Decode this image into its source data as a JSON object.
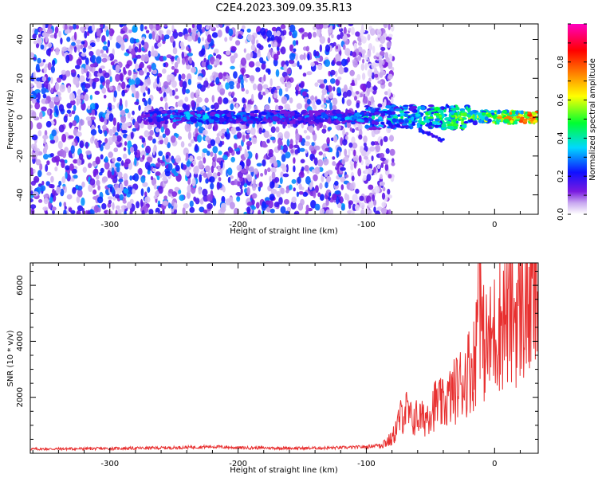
{
  "figure_title": "C2E4.2023.309.09.35.R13",
  "chart_data": [
    {
      "type": "heatmap",
      "title": "C2E4.2023.309.09.35.R13",
      "xlabel": "Height of straight line (km)",
      "ylabel": "Frequency (Hz)",
      "xlim": [
        -362,
        34
      ],
      "ylim": [
        -50,
        48
      ],
      "xticks": [
        -300,
        -200,
        -100,
        0
      ],
      "yticks": [
        -40,
        -20,
        0,
        20,
        40
      ],
      "colorbar": {
        "label": "Normalized spectral amplitude",
        "range": [
          0,
          1
        ],
        "ticks": [
          "0.0",
          "0.2",
          "0.4",
          "0.6",
          "0.8"
        ],
        "colormap": "rainbow (white → violet → blue → cyan → green → yellow → orange → red → magenta)"
      },
      "features": {
        "noise_region_x": [
          -362,
          -85
        ],
        "noise_amplitude_typical": 0.15,
        "signal_band_center_hz": 0,
        "signal_band_x": [
          -272,
          34
        ],
        "signal_amplitude_profile": [
          {
            "x": -270,
            "amp": 0.3
          },
          {
            "x": -240,
            "amp": 0.4
          },
          {
            "x": -200,
            "amp": 0.35
          },
          {
            "x": -140,
            "amp": 0.3
          },
          {
            "x": -100,
            "amp": 0.4
          },
          {
            "x": -80,
            "amp": 0.45
          },
          {
            "x": -60,
            "amp": 0.5
          },
          {
            "x": -40,
            "amp": 0.55
          },
          {
            "x": -20,
            "amp": 0.6
          },
          {
            "x": 0,
            "amp": 0.7
          },
          {
            "x": 20,
            "amp": 0.85
          },
          {
            "x": 34,
            "amp": 0.9
          }
        ],
        "secondary_branch": {
          "x": [
            -60,
            -40
          ],
          "freq_hz": [
            -6,
            -12
          ]
        }
      }
    },
    {
      "type": "line",
      "xlabel": "Height of straight line (km)",
      "ylabel": "SNR (10 * v/v)",
      "xlim": [
        -362,
        34
      ],
      "ylim": [
        0,
        6800
      ],
      "xticks": [
        -300,
        -200,
        -100,
        0
      ],
      "yticks": [
        2000,
        4000,
        6000
      ],
      "series": [
        {
          "color": "#e83030",
          "x": [
            -362,
            -300,
            -250,
            -220,
            -200,
            -150,
            -120,
            -100,
            -90,
            -80,
            -75,
            -70,
            -65,
            -60,
            -55,
            -50,
            -45,
            -40,
            -35,
            -30,
            -25,
            -20,
            -15,
            -12,
            -10,
            -5,
            0,
            5,
            10,
            15,
            20,
            25,
            30,
            34
          ],
          "y": [
            150,
            170,
            200,
            240,
            200,
            180,
            200,
            230,
            300,
            500,
            1100,
            1600,
            1200,
            1300,
            1200,
            1600,
            1800,
            1700,
            2000,
            2300,
            2600,
            3000,
            3300,
            6800,
            4000,
            3800,
            4300,
            4800,
            4900,
            5000,
            5200,
            5300,
            5400,
            5600
          ]
        }
      ]
    }
  ]
}
